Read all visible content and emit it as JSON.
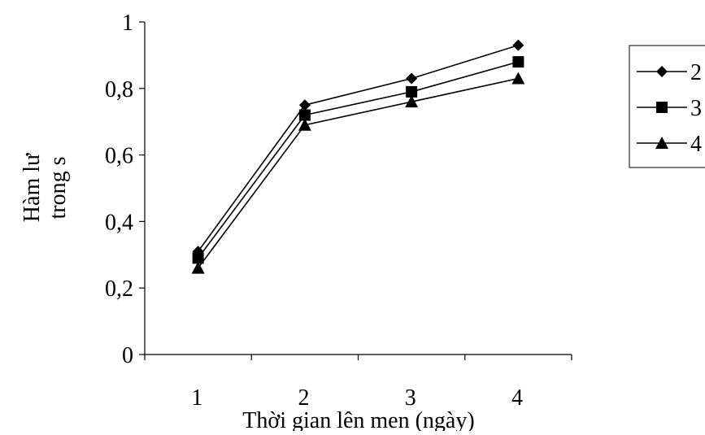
{
  "chart_data": {
    "type": "line",
    "xlabel": "Thời gian lên men (ngày)",
    "ylabel_lines": [
      "Hàm lư",
      "trong s"
    ],
    "categories": [
      "1",
      "2",
      "3",
      "4"
    ],
    "y_ticks": [
      "0",
      "0,2",
      "0,4",
      "0,6",
      "0,8",
      "1"
    ],
    "ylim": [
      0,
      1
    ],
    "grid": false,
    "legend_position": "right",
    "series": [
      {
        "name": "2",
        "marker": "diamond",
        "values": [
          0.31,
          0.75,
          0.83,
          0.93
        ]
      },
      {
        "name": "3",
        "marker": "square",
        "values": [
          0.29,
          0.72,
          0.79,
          0.88
        ]
      },
      {
        "name": "4",
        "marker": "triangle",
        "values": [
          0.26,
          0.69,
          0.76,
          0.83
        ]
      }
    ]
  },
  "colors": {
    "line": "#000000",
    "background": "#ffffff"
  }
}
